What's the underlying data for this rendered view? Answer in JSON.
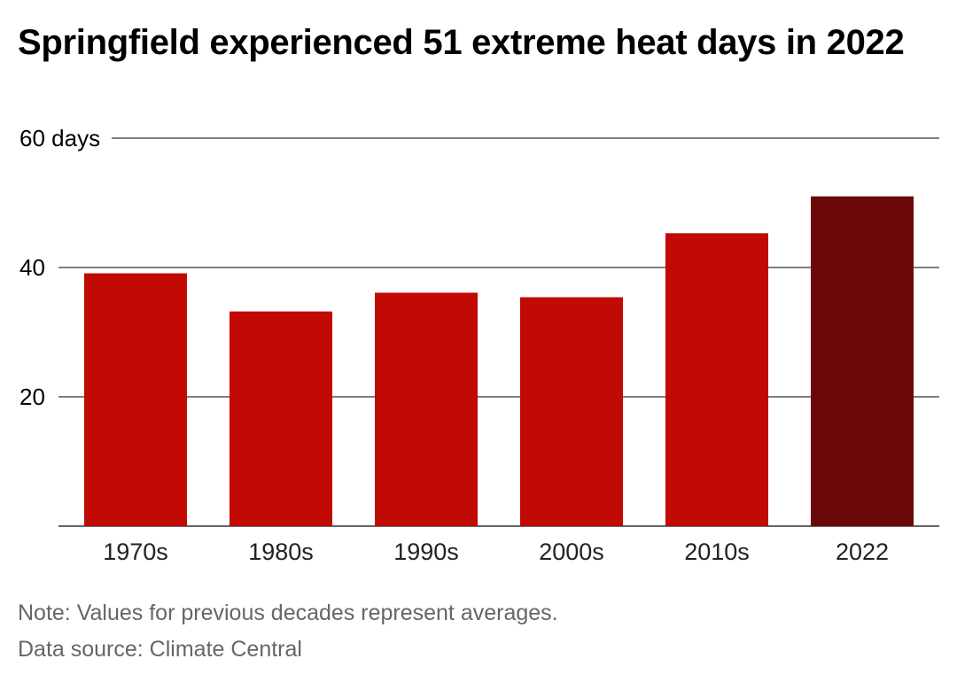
{
  "title": "Springfield experienced 51 extreme heat days in 2022",
  "note": "Note: Values for previous decades represent averages.",
  "source": "Data source: Climate Central",
  "colors": {
    "bar": "#c10a04",
    "highlight": "#6b090a",
    "grid": "#333333",
    "tick_text": "#222222",
    "footnote_text": "#666666"
  },
  "chart_data": {
    "type": "bar",
    "title": "Springfield experienced 51 extreme heat days in 2022",
    "categories": [
      "1970s",
      "1980s",
      "1990s",
      "2000s",
      "2010s",
      "2022"
    ],
    "values": [
      39.1,
      33.2,
      36.1,
      35.4,
      45.3,
      51
    ],
    "highlight_category": "2022",
    "ylim": [
      0,
      60
    ],
    "yticks": [
      20,
      40,
      60
    ],
    "ytick_labels": [
      "20",
      "40",
      "60 days"
    ],
    "ylabel": "",
    "xlabel": "",
    "grid": true,
    "legend": false
  }
}
